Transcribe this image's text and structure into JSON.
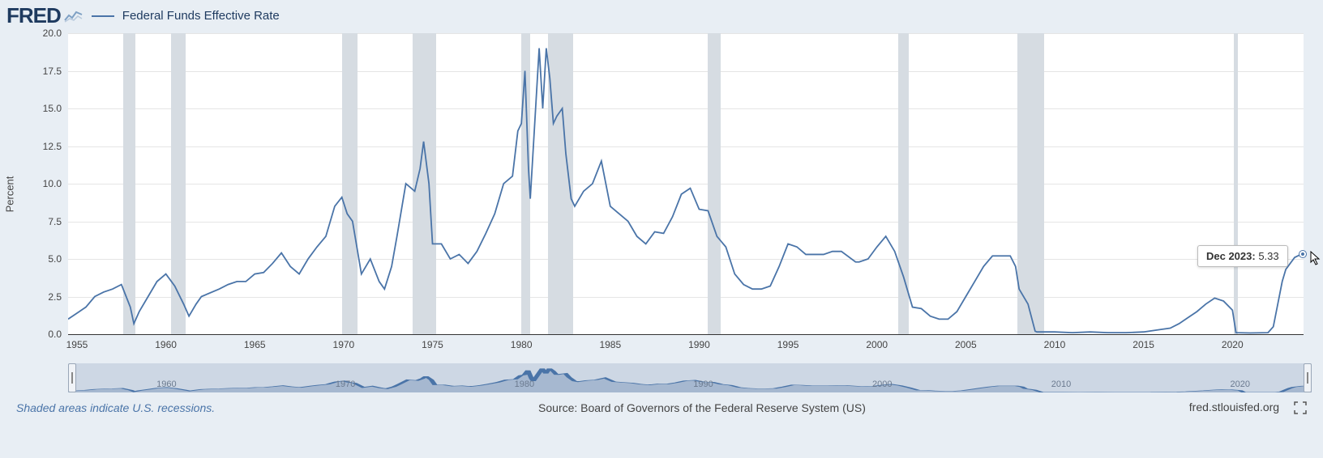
{
  "header": {
    "logo_text": "FRED",
    "series_name": "Federal Funds Effective Rate",
    "legend_color": "#4a74a8"
  },
  "chart": {
    "type": "line",
    "ylabel": "Percent",
    "background_color": "#ffffff",
    "grid_color": "#e5e5e5",
    "axis_color": "#333333",
    "line_color": "#4a74a8",
    "line_width": 1.8,
    "recession_color": "#d6dce2",
    "ylim": [
      0,
      20
    ],
    "ytick_step": 2.5,
    "yticks": [
      "0.0",
      "2.5",
      "5.0",
      "7.5",
      "10.0",
      "12.5",
      "15.0",
      "17.5",
      "20.0"
    ],
    "xlim": [
      1954.5,
      2024.0
    ],
    "xticks": [
      1955,
      1960,
      1965,
      1970,
      1975,
      1980,
      1985,
      1990,
      1995,
      2000,
      2005,
      2010,
      2015,
      2020
    ],
    "recessions": [
      [
        1957.6,
        1958.3
      ],
      [
        1960.3,
        1961.1
      ],
      [
        1969.9,
        1970.8
      ],
      [
        1973.9,
        1975.2
      ],
      [
        1980.0,
        1980.5
      ],
      [
        1981.5,
        1982.9
      ],
      [
        1990.5,
        1991.2
      ],
      [
        2001.2,
        2001.8
      ],
      [
        2007.9,
        2009.4
      ],
      [
        2020.1,
        2020.3
      ]
    ],
    "series": [
      [
        1954.5,
        1.0
      ],
      [
        1955,
        1.4
      ],
      [
        1955.5,
        1.8
      ],
      [
        1956,
        2.5
      ],
      [
        1956.5,
        2.8
      ],
      [
        1957,
        3.0
      ],
      [
        1957.5,
        3.3
      ],
      [
        1958,
        1.8
      ],
      [
        1958.2,
        0.7
      ],
      [
        1958.5,
        1.5
      ],
      [
        1959,
        2.5
      ],
      [
        1959.5,
        3.5
      ],
      [
        1960,
        4.0
      ],
      [
        1960.5,
        3.2
      ],
      [
        1961,
        2.0
      ],
      [
        1961.3,
        1.2
      ],
      [
        1961.7,
        2.0
      ],
      [
        1962,
        2.5
      ],
      [
        1963,
        3.0
      ],
      [
        1963.5,
        3.3
      ],
      [
        1964,
        3.5
      ],
      [
        1964.5,
        3.5
      ],
      [
        1965,
        4.0
      ],
      [
        1965.5,
        4.1
      ],
      [
        1966,
        4.7
      ],
      [
        1966.5,
        5.4
      ],
      [
        1967,
        4.5
      ],
      [
        1967.5,
        4.0
      ],
      [
        1968,
        5.0
      ],
      [
        1968.5,
        5.8
      ],
      [
        1969,
        6.5
      ],
      [
        1969.5,
        8.5
      ],
      [
        1969.9,
        9.1
      ],
      [
        1970.2,
        8.0
      ],
      [
        1970.5,
        7.5
      ],
      [
        1971,
        4.0
      ],
      [
        1971.5,
        5.0
      ],
      [
        1972,
        3.5
      ],
      [
        1972.3,
        3.0
      ],
      [
        1972.7,
        4.5
      ],
      [
        1973,
        6.5
      ],
      [
        1973.5,
        10.0
      ],
      [
        1974,
        9.5
      ],
      [
        1974.3,
        11.0
      ],
      [
        1974.5,
        12.8
      ],
      [
        1974.8,
        10.0
      ],
      [
        1975,
        6.0
      ],
      [
        1975.5,
        6.0
      ],
      [
        1976,
        5.0
      ],
      [
        1976.5,
        5.3
      ],
      [
        1977,
        4.7
      ],
      [
        1977.5,
        5.5
      ],
      [
        1978,
        6.7
      ],
      [
        1978.5,
        8.0
      ],
      [
        1979,
        10.0
      ],
      [
        1979.5,
        10.5
      ],
      [
        1979.8,
        13.5
      ],
      [
        1980,
        14.0
      ],
      [
        1980.2,
        17.5
      ],
      [
        1980.4,
        11.0
      ],
      [
        1980.5,
        9.0
      ],
      [
        1980.8,
        15.0
      ],
      [
        1981,
        19.0
      ],
      [
        1981.2,
        15.0
      ],
      [
        1981.4,
        19.0
      ],
      [
        1981.6,
        17.0
      ],
      [
        1981.8,
        14.0
      ],
      [
        1982,
        14.5
      ],
      [
        1982.3,
        15.0
      ],
      [
        1982.5,
        12.0
      ],
      [
        1982.8,
        9.0
      ],
      [
        1983,
        8.5
      ],
      [
        1983.5,
        9.5
      ],
      [
        1984,
        10.0
      ],
      [
        1984.5,
        11.5
      ],
      [
        1985,
        8.5
      ],
      [
        1985.5,
        8.0
      ],
      [
        1986,
        7.5
      ],
      [
        1986.5,
        6.5
      ],
      [
        1987,
        6.0
      ],
      [
        1987.5,
        6.8
      ],
      [
        1988,
        6.7
      ],
      [
        1988.5,
        7.8
      ],
      [
        1989,
        9.3
      ],
      [
        1989.5,
        9.7
      ],
      [
        1990,
        8.3
      ],
      [
        1990.5,
        8.2
      ],
      [
        1991,
        6.5
      ],
      [
        1991.5,
        5.8
      ],
      [
        1992,
        4.0
      ],
      [
        1992.5,
        3.3
      ],
      [
        1993,
        3.0
      ],
      [
        1993.5,
        3.0
      ],
      [
        1994,
        3.2
      ],
      [
        1994.5,
        4.5
      ],
      [
        1995,
        6.0
      ],
      [
        1995.5,
        5.8
      ],
      [
        1996,
        5.3
      ],
      [
        1996.5,
        5.3
      ],
      [
        1997,
        5.3
      ],
      [
        1997.5,
        5.5
      ],
      [
        1998,
        5.5
      ],
      [
        1998.8,
        4.8
      ],
      [
        1999,
        4.8
      ],
      [
        1999.5,
        5.0
      ],
      [
        2000,
        5.8
      ],
      [
        2000.5,
        6.5
      ],
      [
        2001,
        5.5
      ],
      [
        2001.5,
        3.8
      ],
      [
        2002,
        1.8
      ],
      [
        2002.5,
        1.7
      ],
      [
        2003,
        1.2
      ],
      [
        2003.5,
        1.0
      ],
      [
        2004,
        1.0
      ],
      [
        2004.5,
        1.5
      ],
      [
        2005,
        2.5
      ],
      [
        2005.5,
        3.5
      ],
      [
        2006,
        4.5
      ],
      [
        2006.5,
        5.2
      ],
      [
        2007,
        5.2
      ],
      [
        2007.5,
        5.2
      ],
      [
        2007.8,
        4.5
      ],
      [
        2008,
        3.0
      ],
      [
        2008.5,
        2.0
      ],
      [
        2008.9,
        0.2
      ],
      [
        2009,
        0.15
      ],
      [
        2010,
        0.15
      ],
      [
        2011,
        0.1
      ],
      [
        2012,
        0.15
      ],
      [
        2013,
        0.1
      ],
      [
        2014,
        0.1
      ],
      [
        2015,
        0.15
      ],
      [
        2015.9,
        0.3
      ],
      [
        2016.5,
        0.4
      ],
      [
        2017,
        0.7
      ],
      [
        2017.5,
        1.1
      ],
      [
        2018,
        1.5
      ],
      [
        2018.5,
        2.0
      ],
      [
        2019,
        2.4
      ],
      [
        2019.5,
        2.2
      ],
      [
        2020,
        1.6
      ],
      [
        2020.2,
        0.1
      ],
      [
        2021,
        0.08
      ],
      [
        2022,
        0.1
      ],
      [
        2022.3,
        0.5
      ],
      [
        2022.5,
        1.7
      ],
      [
        2022.8,
        3.5
      ],
      [
        2023,
        4.3
      ],
      [
        2023.5,
        5.1
      ],
      [
        2023.9,
        5.33
      ],
      [
        2024,
        5.33
      ]
    ],
    "tooltip": {
      "label": "Dec 2023:",
      "value": "5.33"
    },
    "marker_point": [
      2023.95,
      5.33
    ]
  },
  "navigator": {
    "fill_color": "#9fb3cc",
    "bg_color": "#cdd7e4",
    "labels": [
      1960,
      1970,
      1980,
      1990,
      2000,
      2010,
      2020
    ]
  },
  "footer": {
    "recession_note": "Shaded areas indicate U.S. recessions.",
    "source": "Source: Board of Governors of the Federal Reserve System (US)",
    "site": "fred.stlouisfed.org"
  }
}
